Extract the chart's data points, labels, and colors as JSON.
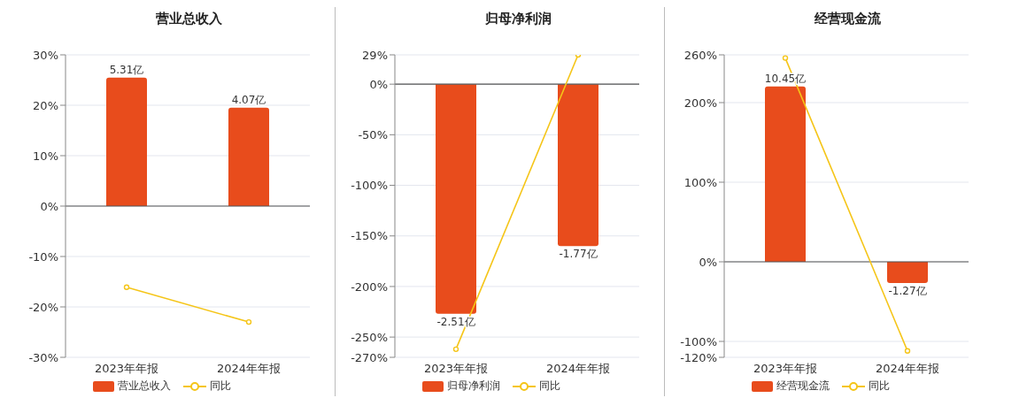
{
  "chart_data": [
    {
      "type": "bar",
      "title": "营业总收入",
      "categories": [
        "2023年年报",
        "2024年年报"
      ],
      "series": [
        {
          "name": "营业总收入",
          "axis": "y2",
          "color": "#e84c1c",
          "values": [
            5.31,
            4.07
          ],
          "value_labels": [
            "5.31亿",
            "4.07亿"
          ]
        },
        {
          "name": "同比",
          "type": "line",
          "color": "#f5c518",
          "values": [
            -16.1,
            -23.0
          ]
        }
      ],
      "ylim": [
        -30,
        30
      ],
      "yticks": [
        {
          "value": 30,
          "label": "30%"
        },
        {
          "value": 20,
          "label": "20%"
        },
        {
          "value": 10,
          "label": "10%"
        },
        {
          "value": 0,
          "label": "0%"
        },
        {
          "value": -10,
          "label": "-10%"
        },
        {
          "value": -20,
          "label": "-20%"
        },
        {
          "value": -30,
          "label": "-30%"
        }
      ],
      "y2lim": [
        -6.25,
        6.25
      ],
      "grid": "y",
      "legend": "bottom",
      "marker": "circle"
    },
    {
      "type": "bar",
      "title": "归母净利润",
      "categories": [
        "2023年年报",
        "2024年年报"
      ],
      "series": [
        {
          "name": "归母净利润",
          "axis": "y2",
          "color": "#e84c1c",
          "values": [
            -2.51,
            -1.77
          ],
          "value_labels": [
            "-2.51亿",
            "-1.77亿"
          ]
        },
        {
          "name": "同比",
          "type": "line",
          "color": "#f5c518",
          "values": [
            -262,
            29
          ]
        }
      ],
      "ylim": [
        -270,
        29
      ],
      "yticks": [
        {
          "value": 29,
          "label": "29%"
        },
        {
          "value": 0,
          "label": "0%"
        },
        {
          "value": -50,
          "label": "-50%"
        },
        {
          "value": -100,
          "label": "-100%"
        },
        {
          "value": -150,
          "label": "-150%"
        },
        {
          "value": -200,
          "label": "-200%"
        },
        {
          "value": -250,
          "label": "-250%"
        },
        {
          "value": -270,
          "label": "-270%"
        }
      ],
      "y2lim": [
        -2.987,
        0.321
      ],
      "grid": "y",
      "legend": "bottom",
      "marker": "circle"
    },
    {
      "type": "bar",
      "title": "经营现金流",
      "categories": [
        "2023年年报",
        "2024年年报"
      ],
      "series": [
        {
          "name": "经营现金流",
          "axis": "y2",
          "color": "#e84c1c",
          "values": [
            10.45,
            -1.27
          ],
          "value_labels": [
            "10.45亿",
            "-1.27亿"
          ]
        },
        {
          "name": "同比",
          "type": "line",
          "color": "#f5c518",
          "values": [
            256,
            -112
          ]
        }
      ],
      "ylim": [
        -120,
        260
      ],
      "yticks": [
        {
          "value": 260,
          "label": "260%"
        },
        {
          "value": 200,
          "label": "200%"
        },
        {
          "value": 100,
          "label": "100%"
        },
        {
          "value": 0,
          "label": "0%"
        },
        {
          "value": -100,
          "label": "-100%"
        },
        {
          "value": -120,
          "label": "-120%"
        }
      ],
      "y2lim": [
        -5.695,
        12.34
      ],
      "grid": "y",
      "legend": "bottom",
      "marker": "circle"
    }
  ]
}
